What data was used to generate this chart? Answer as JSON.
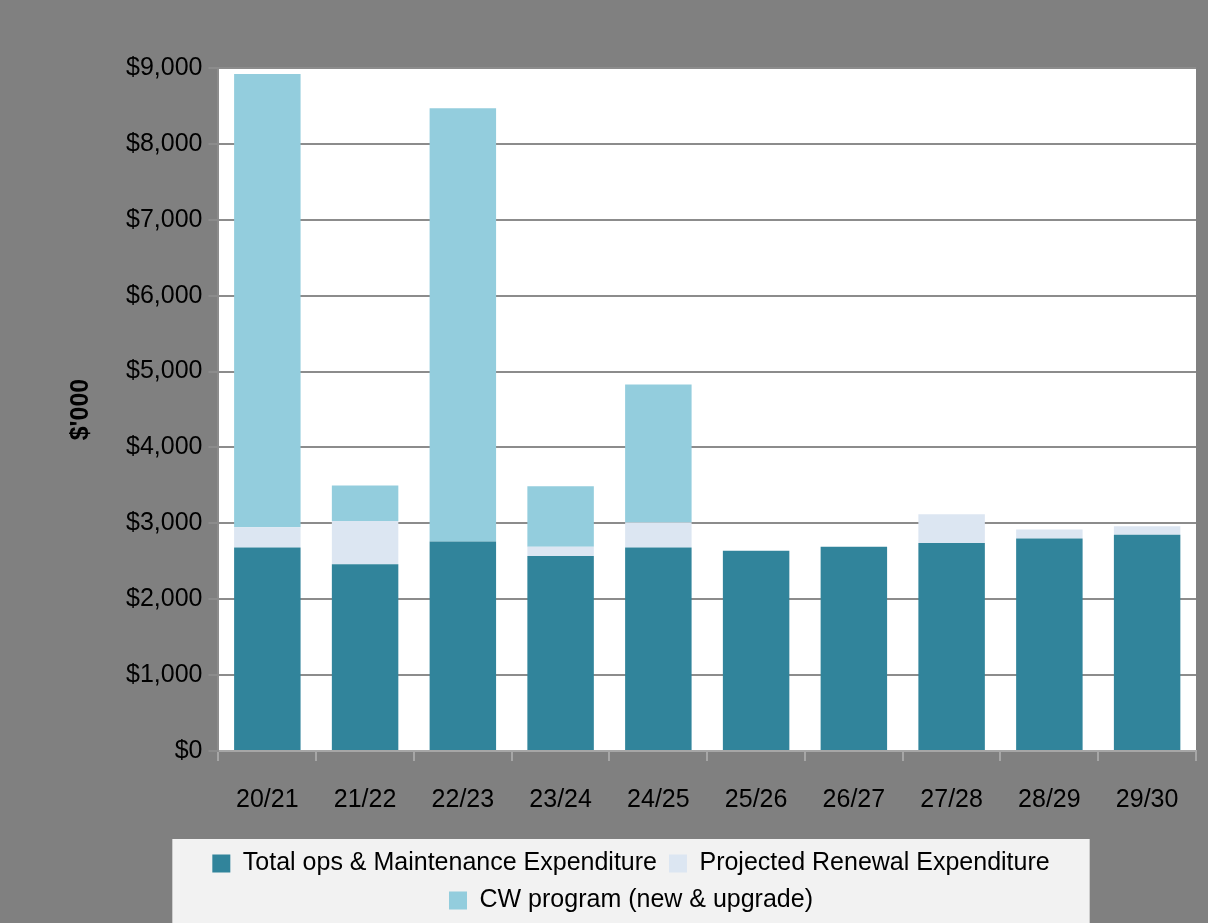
{
  "chart_data": {
    "type": "bar",
    "stacked": true,
    "ylabel": "$'000",
    "categories": [
      "20/21",
      "21/22",
      "22/23",
      "23/24",
      "24/25",
      "25/26",
      "26/27",
      "27/28",
      "28/29",
      "29/30"
    ],
    "series": [
      {
        "name": "Total ops & Maintenance Expenditure",
        "color": "#31849b",
        "values": [
          2680,
          2460,
          2760,
          2570,
          2680,
          2640,
          2690,
          2740,
          2800,
          2850
        ]
      },
      {
        "name": "Projected Renewal Expenditure",
        "color": "#dce6f2",
        "values": [
          270,
          570,
          0,
          120,
          330,
          0,
          0,
          380,
          120,
          110
        ]
      },
      {
        "name": "CW program (new & upgrade)",
        "color": "#93cddd",
        "values": [
          5970,
          470,
          5710,
          800,
          1820,
          0,
          0,
          0,
          0,
          0
        ]
      }
    ],
    "ylim": [
      0,
      9000
    ],
    "yticks": [
      {
        "value": 0,
        "label": "$0"
      },
      {
        "value": 1000,
        "label": "$1,000"
      },
      {
        "value": 2000,
        "label": "$2,000"
      },
      {
        "value": 3000,
        "label": "$3,000"
      },
      {
        "value": 4000,
        "label": "$4,000"
      },
      {
        "value": 5000,
        "label": "$5,000"
      },
      {
        "value": 6000,
        "label": "$6,000"
      },
      {
        "value": 7000,
        "label": "$7,000"
      },
      {
        "value": 8000,
        "label": "$8,000"
      },
      {
        "value": 9000,
        "label": "$9,000"
      }
    ],
    "grid": "y",
    "legend": "bottom"
  }
}
